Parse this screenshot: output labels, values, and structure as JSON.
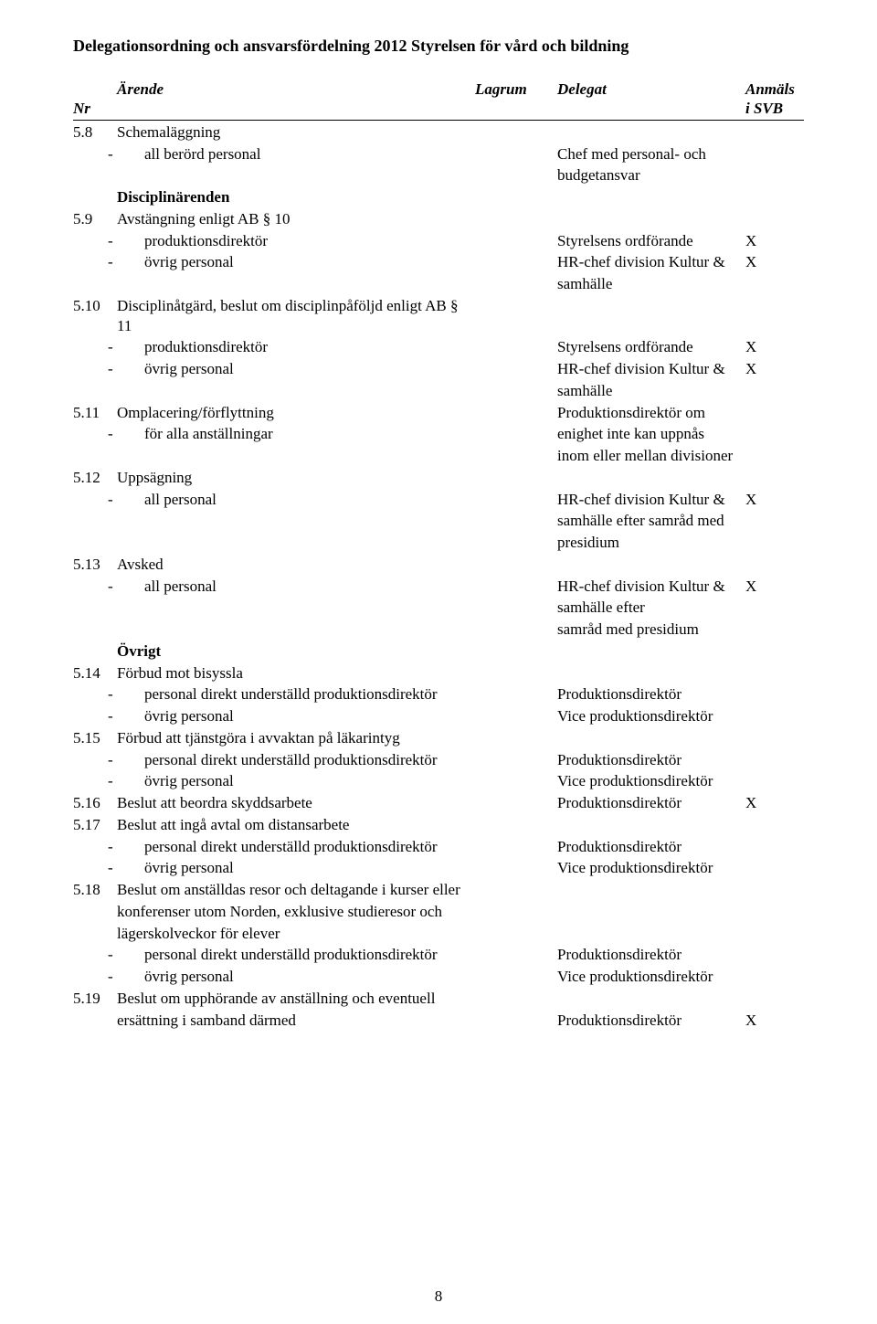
{
  "doc_title": "Delegationsordning och ansvarsfördelning 2012 Styrelsen för vård och bildning",
  "headers": {
    "nr": "Nr",
    "arende": "Ärende",
    "lagrum": "Lagrum",
    "delegat": "Delegat",
    "anmals": "Anmäls",
    "isvb": "i SVB"
  },
  "x": "X",
  "page_number": "8",
  "r5_8": {
    "nr": "5.8",
    "title": "Schemaläggning",
    "b1": "all berörd personal",
    "d1a": "Chef med personal- och",
    "d1b": "budgetansvar"
  },
  "disc_title": "Disciplinärenden",
  "r5_9": {
    "nr": "5.9",
    "title": "Avstängning enligt AB § 10",
    "b1": "produktionsdirektör",
    "d1": "Styrelsens ordförande",
    "b2": "övrig personal",
    "d2a": "HR-chef division Kultur &",
    "d2b": "samhälle"
  },
  "r5_10": {
    "nr": "5.10",
    "title": "Disciplinåtgärd, beslut om disciplinpåföljd enligt AB § 11",
    "b1": "produktionsdirektör",
    "d1": "Styrelsens ordförande",
    "b2": "övrig personal",
    "d2a": "HR-chef  division Kultur &",
    "d2b": "samhälle"
  },
  "r5_11": {
    "nr": "5.11",
    "title": "Omplacering/förflyttning",
    "d0": "Produktionsdirektör om",
    "b1": "för alla anställningar",
    "d1": "enighet inte kan uppnås",
    "d2": "inom eller mellan divisioner"
  },
  "r5_12": {
    "nr": "5.12",
    "title": "Uppsägning",
    "b1": "all personal",
    "d1a": "HR-chef division Kultur &",
    "d1b": "samhälle efter samråd med",
    "d1c": "presidium"
  },
  "r5_13": {
    "nr": "5.13",
    "title": "Avsked",
    "b1": "all personal",
    "d1a": "HR-chef division Kultur &",
    "d1b": "samhälle efter",
    "d1c": "samråd med presidium"
  },
  "ovrigt": "Övrigt",
  "r5_14": {
    "nr": "5.14",
    "title": "Förbud mot bisyssla",
    "b1": "personal direkt underställd produktionsdirektör",
    "d1": "Produktionsdirektör",
    "b2": "övrig personal",
    "d2": "Vice produktionsdirektör"
  },
  "r5_15": {
    "nr": "5.15",
    "title": "Förbud att tjänstgöra i avvaktan på läkarintyg",
    "b1": "personal direkt underställd produktionsdirektör",
    "d1": "Produktionsdirektör",
    "b2": "övrig personal",
    "d2": "Vice produktionsdirektör"
  },
  "r5_16": {
    "nr": "5.16",
    "title": "Beslut att beordra skyddsarbete",
    "d": "Produktionsdirektör"
  },
  "r5_17": {
    "nr": "5.17",
    "title": "Beslut att ingå avtal om distansarbete",
    "b1": "personal direkt underställd produktionsdirektör",
    "d1": "Produktionsdirektör",
    "b2": "övrig personal",
    "d2": "Vice produktionsdirektör"
  },
  "r5_18": {
    "nr": "5.18",
    "l1": "Beslut om anställdas resor och deltagande i kurser eller",
    "l2": "konferenser utom Norden, exklusive studieresor och",
    "l3": "lägerskolveckor för elever",
    "b1": "personal direkt underställd produktionsdirektör",
    "d1": "Produktionsdirektör",
    "b2": "övrig personal",
    "d2": "Vice produktionsdirektör"
  },
  "r5_19": {
    "nr": "5.19",
    "l1": "Beslut om upphörande av anställning och eventuell",
    "l2": "ersättning i samband därmed",
    "d": "Produktionsdirektör"
  }
}
